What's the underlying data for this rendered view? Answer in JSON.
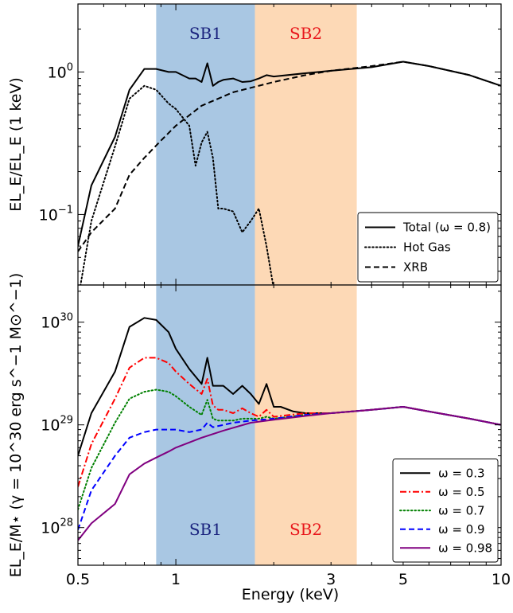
{
  "chart_data": [
    {
      "type": "line",
      "panel": "top",
      "xscale": "log",
      "yscale": "log",
      "xlim": [
        0.5,
        10
      ],
      "ylim": [
        0.032,
        3.0
      ],
      "ylabel": "EL_E/EL_E (1 keV)",
      "yticks": [
        {
          "value": 0.1,
          "base": "10",
          "exp": "−1"
        },
        {
          "value": 1.0,
          "base": "10",
          "exp": "0"
        }
      ],
      "bands": [
        {
          "label": "SB1",
          "x": [
            0.87,
            1.75
          ],
          "color": "#a9c7e3",
          "label_color": "#1a237e"
        },
        {
          "label": "SB2",
          "x": [
            1.75,
            3.6
          ],
          "color": "#fdd9b6",
          "label_color": "#e8161b"
        }
      ],
      "legend": {
        "position": "bottom-right",
        "entries": [
          {
            "label": "Total (ω = 0.8)",
            "style": "solid"
          },
          {
            "label": "Hot Gas",
            "style": "dotted"
          },
          {
            "label": "XRB",
            "style": "dashed"
          }
        ]
      },
      "series": [
        {
          "name": "Total (ω = 0.8)",
          "color": "#000000",
          "dash": "solid",
          "x": [
            0.5,
            0.55,
            0.65,
            0.72,
            0.8,
            0.87,
            0.95,
            1.0,
            1.1,
            1.15,
            1.2,
            1.25,
            1.3,
            1.35,
            1.4,
            1.5,
            1.6,
            1.7,
            1.8,
            1.9,
            2.0,
            2.5,
            3.0,
            4.0,
            5.0,
            6.0,
            8.0,
            10.0
          ],
          "y": [
            0.06,
            0.16,
            0.35,
            0.75,
            1.05,
            1.05,
            1.0,
            1.0,
            0.9,
            0.9,
            0.85,
            1.15,
            0.8,
            0.85,
            0.88,
            0.9,
            0.85,
            0.86,
            0.9,
            0.95,
            0.93,
            0.98,
            1.02,
            1.08,
            1.18,
            1.1,
            0.95,
            0.8
          ]
        },
        {
          "name": "Hot Gas",
          "color": "#000000",
          "dash": "dotted",
          "x": [
            0.5,
            0.55,
            0.65,
            0.72,
            0.8,
            0.87,
            0.95,
            1.0,
            1.1,
            1.15,
            1.2,
            1.25,
            1.3,
            1.35,
            1.4,
            1.5,
            1.6,
            1.7,
            1.8,
            1.9,
            2.0
          ],
          "y": [
            0.025,
            0.09,
            0.3,
            0.65,
            0.8,
            0.75,
            0.6,
            0.55,
            0.42,
            0.22,
            0.32,
            0.38,
            0.25,
            0.11,
            0.11,
            0.105,
            0.075,
            0.09,
            0.11,
            0.06,
            0.03
          ]
        },
        {
          "name": "XRB",
          "color": "#000000",
          "dash": "dashed",
          "x": [
            0.5,
            0.55,
            0.65,
            0.72,
            0.8,
            0.9,
            1.0,
            1.2,
            1.5,
            2.0,
            2.5,
            3.0,
            4.0,
            5.0,
            6.0,
            8.0,
            10.0
          ],
          "y": [
            0.055,
            0.075,
            0.11,
            0.19,
            0.25,
            0.33,
            0.42,
            0.58,
            0.72,
            0.85,
            0.95,
            1.02,
            1.1,
            1.18,
            1.1,
            0.95,
            0.8
          ]
        }
      ]
    },
    {
      "type": "line",
      "panel": "bottom",
      "xscale": "log",
      "yscale": "log",
      "xlim": [
        0.5,
        10
      ],
      "ylim": [
        4.3e+27,
        2.3e+30
      ],
      "xlabel": "Energy (keV)",
      "ylabel": "EL_E/M⋆ (γ = 10^30 erg s^−1 M⊙^−1)",
      "xticks": [
        {
          "value": 0.5,
          "label": "0.5"
        },
        {
          "value": 1,
          "label": "1"
        },
        {
          "value": 3,
          "label": "3"
        },
        {
          "value": 5,
          "label": "5"
        },
        {
          "value": 10,
          "label": "10"
        }
      ],
      "yticks": [
        {
          "value": 1e+28,
          "base": "10",
          "exp": "28"
        },
        {
          "value": 1e+29,
          "base": "10",
          "exp": "29"
        },
        {
          "value": 1e+30,
          "base": "10",
          "exp": "30"
        }
      ],
      "bands": [
        {
          "label": "SB1",
          "x": [
            0.87,
            1.75
          ],
          "color": "#a9c7e3",
          "label_color": "#1a237e"
        },
        {
          "label": "SB2",
          "x": [
            1.75,
            3.6
          ],
          "color": "#fdd9b6",
          "label_color": "#e8161b"
        }
      ],
      "legend": {
        "position": "bottom-right",
        "entries": [
          {
            "label": "ω = 0.3",
            "style": "solid",
            "color": "#000000"
          },
          {
            "label": "ω = 0.5",
            "style": "dashdot",
            "color": "#ff0000"
          },
          {
            "label": "ω = 0.7",
            "style": "dotted",
            "color": "#008000"
          },
          {
            "label": "ω = 0.9",
            "style": "dashed",
            "color": "#0000ff"
          },
          {
            "label": "ω = 0.98",
            "style": "solid",
            "color": "#800080"
          }
        ]
      },
      "series": [
        {
          "name": "ω = 0.3",
          "color": "#000000",
          "dash": "solid",
          "x": [
            0.5,
            0.55,
            0.65,
            0.72,
            0.8,
            0.87,
            0.95,
            1.0,
            1.1,
            1.2,
            1.25,
            1.3,
            1.35,
            1.4,
            1.5,
            1.6,
            1.7,
            1.8,
            1.9,
            2.0,
            2.1,
            2.3,
            2.5,
            3.0,
            4.0,
            5.0,
            6.0,
            8.0,
            10.0
          ],
          "y": [
            5e+28,
            1.3e+29,
            3.3e+29,
            9e+29,
            1.1e+30,
            1.05e+30,
            8e+29,
            5.5e+29,
            3.5e+29,
            2.5e+29,
            4.5e+29,
            2.4e+29,
            2.4e+29,
            2.4e+29,
            2e+29,
            2.4e+29,
            2e+29,
            1.6e+29,
            2.5e+29,
            1.5e+29,
            1.5e+29,
            1.35e+29,
            1.3e+29,
            1.3e+29,
            1.4e+29,
            1.5e+29,
            1.35e+29,
            1.15e+29,
            1e+29
          ]
        },
        {
          "name": "ω = 0.5",
          "color": "#ff0000",
          "dash": "dashdot",
          "x": [
            0.5,
            0.55,
            0.65,
            0.72,
            0.8,
            0.87,
            0.95,
            1.0,
            1.1,
            1.2,
            1.25,
            1.3,
            1.35,
            1.4,
            1.5,
            1.6,
            1.7,
            1.8,
            1.9,
            2.0,
            2.5,
            3.0,
            4.0,
            5.0,
            6.0,
            8.0,
            10.0
          ],
          "y": [
            2.5e+28,
            6.5e+28,
            1.8e+29,
            3.6e+29,
            4.5e+29,
            4.5e+29,
            4e+29,
            3.3e+29,
            2.5e+29,
            2e+29,
            2.8e+29,
            1.55e+29,
            1.4e+29,
            1.4e+29,
            1.3e+29,
            1.45e+29,
            1.3e+29,
            1.2e+29,
            1.4e+29,
            1.2e+29,
            1.3e+29,
            1.3e+29,
            1.4e+29,
            1.5e+29,
            1.35e+29,
            1.15e+29,
            1e+29
          ]
        },
        {
          "name": "ω = 0.7",
          "color": "#008000",
          "dash": "dotted",
          "x": [
            0.5,
            0.55,
            0.65,
            0.72,
            0.8,
            0.87,
            0.95,
            1.0,
            1.1,
            1.2,
            1.25,
            1.3,
            1.35,
            1.4,
            1.5,
            1.6,
            1.7,
            1.8,
            1.9,
            2.0,
            2.5,
            3.0,
            4.0,
            5.0,
            6.0,
            8.0,
            10.0
          ],
          "y": [
            1.5e+28,
            3.8e+28,
            1.05e+29,
            1.8e+29,
            2.1e+29,
            2.2e+29,
            2.1e+29,
            1.9e+29,
            1.5e+29,
            1.25e+29,
            1.75e+29,
            1.15e+29,
            1.1e+29,
            1.1e+29,
            1.1e+29,
            1.15e+29,
            1.15e+29,
            1.15e+29,
            1.2e+29,
            1.15e+29,
            1.25e+29,
            1.3e+29,
            1.4e+29,
            1.5e+29,
            1.35e+29,
            1.15e+29,
            1e+29
          ]
        },
        {
          "name": "ω = 0.9",
          "color": "#0000ff",
          "dash": "dashed",
          "x": [
            0.5,
            0.55,
            0.65,
            0.72,
            0.8,
            0.87,
            0.95,
            1.0,
            1.1,
            1.2,
            1.25,
            1.3,
            1.4,
            1.5,
            1.7,
            2.0,
            2.5,
            3.0,
            4.0,
            5.0,
            6.0,
            8.0,
            10.0
          ],
          "y": [
            9.5e+27,
            2.3e+28,
            5e+28,
            7.5e+28,
            8.5e+28,
            9e+28,
            9e+28,
            9e+28,
            8.5e+28,
            9e+28,
            1.05e+29,
            9.5e+28,
            1e+29,
            1.05e+29,
            1.1e+29,
            1.15e+29,
            1.25e+29,
            1.3e+29,
            1.4e+29,
            1.5e+29,
            1.35e+29,
            1.15e+29,
            1e+29
          ]
        },
        {
          "name": "ω = 0.98",
          "color": "#800080",
          "dash": "solid",
          "x": [
            0.5,
            0.55,
            0.65,
            0.72,
            0.8,
            0.87,
            0.95,
            1.0,
            1.2,
            1.4,
            1.7,
            2.0,
            2.5,
            3.0,
            4.0,
            5.0,
            6.0,
            8.0,
            10.0
          ],
          "y": [
            7.5e+27,
            1.1e+28,
            1.7e+28,
            3.3e+28,
            4.2e+28,
            4.8e+28,
            5.5e+28,
            6e+28,
            7.5e+28,
            8.8e+28,
            1.05e+29,
            1.12e+29,
            1.22e+29,
            1.3e+29,
            1.4e+29,
            1.5e+29,
            1.35e+29,
            1.15e+29,
            1e+29
          ]
        }
      ]
    }
  ]
}
